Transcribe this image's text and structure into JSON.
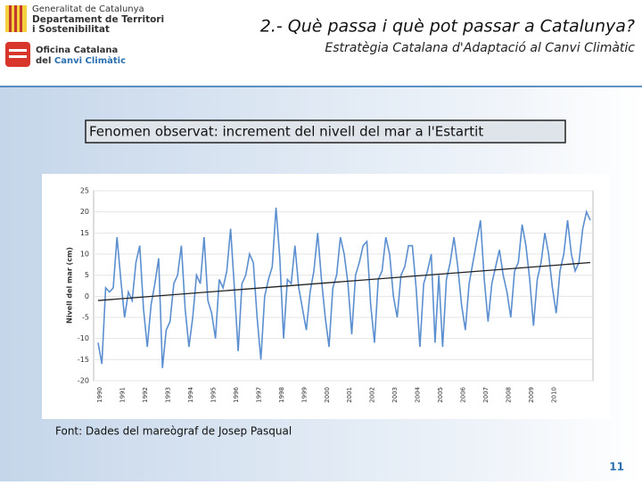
{
  "header": {
    "org": [
      "Generalitat de Catalunya",
      "Departament de Territori",
      "i Sostenibilitat"
    ],
    "office": [
      "Oficina Catalana",
      "del "
    ],
    "office_highlight": "Canvi Climàtic",
    "title": "2.- Què passa i què pot passar a Catalunya?",
    "subtitle": "Estratègia Catalana d'Adaptació al Canvi Climàtic"
  },
  "caption": "Fenomen observat: increment del nivell del mar a l'Estartit",
  "source": "Font: Dades del mareògraf de Josep Pasqual",
  "page_number": "11",
  "chart_data": {
    "type": "line",
    "y_label": "Nivell del mar (cm)",
    "categories": [
      "1990",
      null,
      null,
      null,
      null,
      null,
      "1991",
      null,
      null,
      null,
      null,
      null,
      "1992",
      null,
      null,
      null,
      null,
      null,
      "1993",
      null,
      null,
      null,
      null,
      null,
      "1994",
      null,
      null,
      null,
      null,
      null,
      "1995",
      null,
      null,
      null,
      null,
      null,
      "1996",
      null,
      null,
      null,
      null,
      null,
      "1997",
      null,
      null,
      null,
      null,
      null,
      "1998",
      null,
      null,
      null,
      null,
      null,
      "1999",
      null,
      null,
      null,
      null,
      null,
      "2000",
      null,
      null,
      null,
      null,
      null,
      "2001",
      null,
      null,
      null,
      null,
      null,
      "2002",
      null,
      null,
      null,
      null,
      null,
      "2003",
      null,
      null,
      null,
      null,
      null,
      "2004",
      null,
      null,
      null,
      null,
      null,
      "2005",
      null,
      null,
      null,
      null,
      null,
      "2006",
      null,
      null,
      null,
      null,
      null,
      "2007",
      null,
      null,
      null,
      null,
      null,
      "2008",
      null,
      null,
      null,
      null,
      null,
      "2009",
      null,
      null,
      null,
      null,
      null,
      "2010",
      null,
      null,
      null,
      null,
      null,
      null,
      null,
      null,
      null,
      null
    ],
    "series": [
      {
        "color": "#5b8fd0",
        "values": [
          -11,
          -16,
          2,
          1,
          2,
          14,
          4,
          -5,
          1,
          -1,
          8,
          12,
          -3,
          -12,
          -2,
          3,
          9,
          -17,
          -8,
          -6,
          3,
          5,
          12,
          -3,
          -12,
          -5,
          5,
          3,
          14,
          -1,
          -4,
          -10,
          4,
          2,
          6,
          16,
          2,
          -13,
          3,
          5,
          10,
          8,
          -5,
          -15,
          0,
          4,
          7,
          21,
          9,
          -10,
          4,
          3,
          12,
          2,
          -3,
          -8,
          1,
          6,
          15,
          4,
          -5,
          -12,
          2,
          5,
          14,
          10,
          3,
          -9,
          5,
          8,
          12,
          13,
          -2,
          -11,
          4,
          6,
          14,
          10,
          0,
          -5,
          5,
          7,
          12,
          12,
          2,
          -12,
          3,
          6,
          10,
          -11,
          5,
          -12,
          4,
          8,
          14,
          7,
          -2,
          -8,
          3,
          8,
          13,
          18,
          4,
          -6,
          3,
          7,
          11,
          5,
          1,
          -5,
          6,
          8,
          17,
          12,
          4,
          -7,
          4,
          8,
          15,
          10,
          2,
          -4,
          6,
          10,
          18,
          10,
          6,
          8,
          16,
          20,
          18
        ]
      }
    ],
    "trend": {
      "color": "#222222",
      "values": [
        -1,
        8
      ]
    },
    "ylim": [
      -20,
      25
    ],
    "yticks": [
      -20,
      -15,
      -10,
      -5,
      0,
      5,
      10,
      15,
      20,
      25
    ],
    "grid": true
  }
}
